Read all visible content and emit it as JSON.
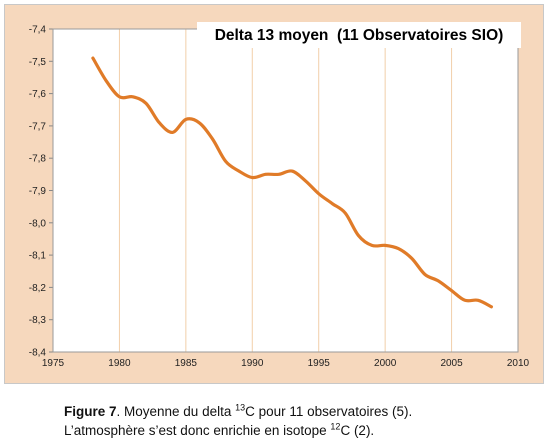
{
  "chart_data": {
    "type": "line",
    "title": "Delta 13 moyen  (11 Observatoires SIO)",
    "xlabel": "",
    "ylabel": "",
    "xlim": [
      1975,
      2010
    ],
    "ylim": [
      -8.4,
      -7.4
    ],
    "x_ticks": [
      "1975",
      "1980",
      "1985",
      "1990",
      "1995",
      "2000",
      "2005",
      "2010"
    ],
    "y_ticks": [
      "-7,4",
      "-7,5",
      "-7,6",
      "-7,7",
      "-7,8",
      "-7,9",
      "-8,0",
      "-8,1",
      "-8,2",
      "-8,3",
      "-8,4"
    ],
    "grid": "vertical",
    "line_color": "#e07b28",
    "series": [
      {
        "x": [
          1978.0,
          1979.0,
          1980.0,
          1981.0,
          1982.0,
          1983.0,
          1984.0,
          1985.0,
          1986.0,
          1987.0,
          1988.0,
          1989.0,
          1990.0,
          1991.0,
          1992.0,
          1993.0,
          1994.0,
          1995.0,
          1996.0,
          1997.0,
          1998.0,
          1999.0,
          2000.0,
          2001.0,
          2002.0,
          2003.0,
          2004.0,
          2005.0,
          2006.0,
          2007.0,
          2008.0
        ],
        "y": [
          -7.49,
          -7.56,
          -7.61,
          -7.61,
          -7.63,
          -7.69,
          -7.72,
          -7.68,
          -7.69,
          -7.74,
          -7.81,
          -7.84,
          -7.86,
          -7.85,
          -7.85,
          -7.84,
          -7.87,
          -7.91,
          -7.94,
          -7.97,
          -8.04,
          -8.07,
          -8.07,
          -8.08,
          -8.11,
          -8.16,
          -8.18,
          -8.21,
          -8.24,
          -8.24,
          -8.26
        ]
      }
    ]
  },
  "caption": {
    "figure_label": "Figure 7",
    "line1_before": ". Moyenne du delta ",
    "line1_sup": "13",
    "line1_after": "C pour 11 observatoires (5).",
    "line2_before": "L’atmosphère s’est donc enrichie en isotope ",
    "line2_sup": "12",
    "line2_after": "C (2)."
  }
}
